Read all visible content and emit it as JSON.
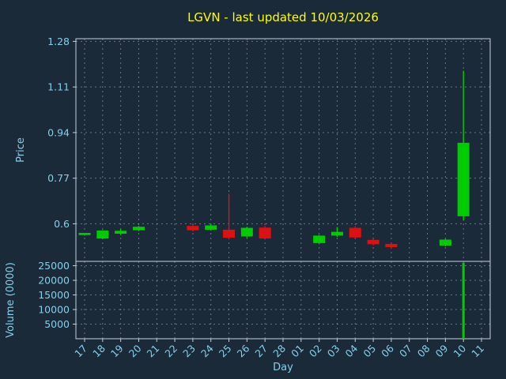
{
  "colors": {
    "background": "#1a2a38",
    "title": "#ffff00",
    "tick_label": "#87ceeb",
    "axis_label": "#87ceeb",
    "grid": "#c8d0d8",
    "spine": "#c8d0d8",
    "up": "#00cc00",
    "down": "#dd1111"
  },
  "chart_data": {
    "type": "candlestick",
    "title": "LGVN - last updated 10/03/2026",
    "xlabel": "Day",
    "ylabel_price": "Price",
    "ylabel_volume": "Volume (0000)",
    "grid": "dashed",
    "legend": "none",
    "x_ticks": [
      "17",
      "18",
      "19",
      "20",
      "21",
      "22",
      "23",
      "24",
      "25",
      "26",
      "27",
      "28",
      "01",
      "02",
      "03",
      "04",
      "05",
      "06",
      "07",
      "08",
      "09",
      "10",
      "11"
    ],
    "price_tick_labels": [
      "1.28",
      "1.11",
      "0.94",
      "0.77",
      "0.6"
    ],
    "price_ylim": [
      0.46,
      1.29
    ],
    "volume_tick_labels": [
      "25000",
      "20000",
      "15000",
      "10000",
      "5000"
    ],
    "volume_ylim": [
      0,
      26500
    ],
    "candles": [
      {
        "day": "17",
        "open": 0.558,
        "high": 0.566,
        "low": 0.556,
        "close": 0.566
      },
      {
        "day": "18",
        "open": 0.545,
        "high": 0.576,
        "low": 0.543,
        "close": 0.575
      },
      {
        "day": "19",
        "open": 0.563,
        "high": 0.58,
        "low": 0.558,
        "close": 0.574
      },
      {
        "day": "20",
        "open": 0.576,
        "high": 0.592,
        "low": 0.573,
        "close": 0.589
      },
      {
        "day": "23",
        "open": 0.592,
        "high": 0.596,
        "low": 0.572,
        "close": 0.576
      },
      {
        "day": "24",
        "open": 0.578,
        "high": 0.601,
        "low": 0.575,
        "close": 0.594
      },
      {
        "day": "25",
        "open": 0.578,
        "high": 0.712,
        "low": 0.544,
        "close": 0.548
      },
      {
        "day": "26",
        "open": 0.553,
        "high": 0.589,
        "low": 0.549,
        "close": 0.585
      },
      {
        "day": "27",
        "open": 0.586,
        "high": 0.592,
        "low": 0.541,
        "close": 0.545
      },
      {
        "day": "02",
        "open": 0.528,
        "high": 0.558,
        "low": 0.524,
        "close": 0.556
      },
      {
        "day": "03",
        "open": 0.556,
        "high": 0.588,
        "low": 0.551,
        "close": 0.57
      },
      {
        "day": "04",
        "open": 0.585,
        "high": 0.591,
        "low": 0.545,
        "close": 0.549
      },
      {
        "day": "05",
        "open": 0.54,
        "high": 0.543,
        "low": 0.52,
        "close": 0.524
      },
      {
        "day": "06",
        "open": 0.525,
        "high": 0.527,
        "low": 0.509,
        "close": 0.513
      },
      {
        "day": "09",
        "open": 0.519,
        "high": 0.544,
        "low": 0.516,
        "close": 0.541
      },
      {
        "day": "10",
        "open": 0.628,
        "high": 1.17,
        "low": 0.612,
        "close": 0.902
      }
    ],
    "volumes": [
      {
        "day": "10",
        "value": 26000
      }
    ]
  }
}
